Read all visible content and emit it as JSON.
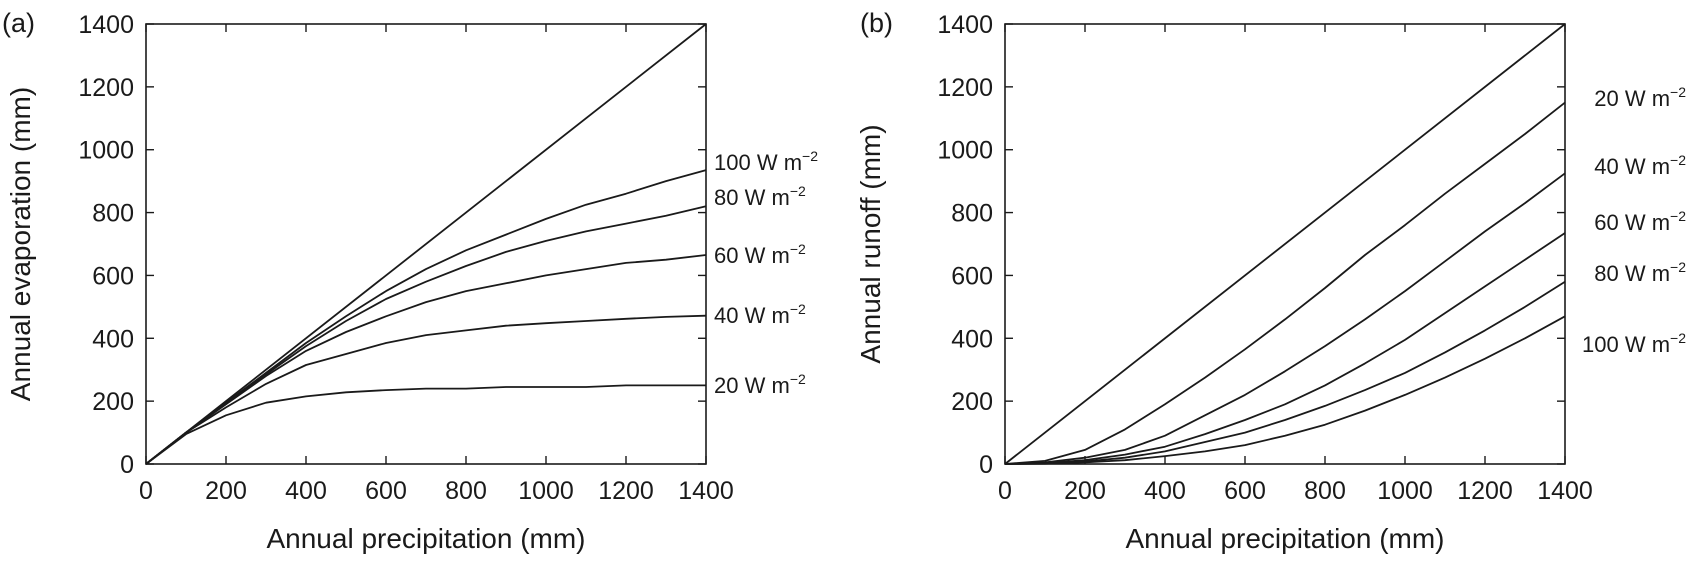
{
  "chart_data": [
    {
      "panel_label": "(a)",
      "type": "line",
      "xlabel": "Annual precipitation (mm)",
      "ylabel": "Annual evaporation (mm)",
      "xlim": [
        0,
        1400
      ],
      "ylim": [
        0,
        1400
      ],
      "xticks": [
        0,
        200,
        400,
        600,
        800,
        1000,
        1200,
        1400
      ],
      "yticks": [
        0,
        200,
        400,
        600,
        800,
        1000,
        1200,
        1400
      ],
      "grid": false,
      "unit_base": "W m",
      "unit_exp": "−2",
      "series": [
        {
          "name": "",
          "x": [
            0,
            1400
          ],
          "y": [
            0,
            1400
          ]
        },
        {
          "name": "100",
          "x": [
            0,
            100,
            200,
            300,
            400,
            500,
            600,
            700,
            800,
            900,
            1000,
            1100,
            1200,
            1300,
            1400
          ],
          "y": [
            0,
            100,
            195,
            290,
            385,
            470,
            550,
            620,
            680,
            730,
            780,
            825,
            860,
            900,
            935
          ]
        },
        {
          "name": "80",
          "x": [
            0,
            100,
            200,
            300,
            400,
            500,
            600,
            700,
            800,
            900,
            1000,
            1100,
            1200,
            1300,
            1400
          ],
          "y": [
            0,
            100,
            195,
            285,
            375,
            455,
            525,
            580,
            630,
            675,
            710,
            740,
            765,
            790,
            820
          ]
        },
        {
          "name": "60",
          "x": [
            0,
            100,
            200,
            300,
            400,
            500,
            600,
            700,
            800,
            900,
            1000,
            1100,
            1200,
            1300,
            1400
          ],
          "y": [
            0,
            100,
            190,
            280,
            360,
            420,
            470,
            515,
            550,
            575,
            600,
            620,
            640,
            650,
            665
          ]
        },
        {
          "name": "40",
          "x": [
            0,
            100,
            200,
            300,
            400,
            500,
            600,
            700,
            800,
            900,
            1000,
            1100,
            1200,
            1300,
            1400
          ],
          "y": [
            0,
            100,
            180,
            255,
            315,
            350,
            385,
            410,
            425,
            440,
            448,
            455,
            462,
            468,
            472
          ]
        },
        {
          "name": "20",
          "x": [
            0,
            100,
            200,
            300,
            400,
            500,
            600,
            700,
            800,
            900,
            1000,
            1100,
            1200,
            1300,
            1400
          ],
          "y": [
            0,
            95,
            155,
            195,
            215,
            228,
            235,
            240,
            240,
            245,
            245,
            245,
            250,
            250,
            250
          ]
        }
      ]
    },
    {
      "panel_label": "(b)",
      "type": "line",
      "xlabel": "Annual precipitation (mm)",
      "ylabel": "Annual runoff (mm)",
      "xlim": [
        0,
        1400
      ],
      "ylim": [
        0,
        1400
      ],
      "xticks": [
        0,
        200,
        400,
        600,
        800,
        1000,
        1200,
        1400
      ],
      "yticks": [
        0,
        200,
        400,
        600,
        800,
        1000,
        1200,
        1400
      ],
      "grid": false,
      "unit_base": "W m",
      "unit_exp": "−2",
      "series": [
        {
          "name": "",
          "x": [
            0,
            1400
          ],
          "y": [
            0,
            1400
          ]
        },
        {
          "name": "20",
          "x": [
            0,
            100,
            200,
            300,
            400,
            500,
            600,
            700,
            800,
            900,
            1000,
            1100,
            1200,
            1300,
            1400
          ],
          "y": [
            0,
            10,
            45,
            110,
            190,
            275,
            365,
            460,
            560,
            665,
            760,
            860,
            955,
            1050,
            1150
          ]
        },
        {
          "name": "40",
          "x": [
            0,
            100,
            200,
            300,
            400,
            500,
            600,
            700,
            800,
            900,
            1000,
            1100,
            1200,
            1300,
            1400
          ],
          "y": [
            0,
            5,
            20,
            45,
            90,
            155,
            220,
            295,
            375,
            460,
            550,
            645,
            740,
            830,
            925
          ]
        },
        {
          "name": "60",
          "x": [
            0,
            100,
            200,
            300,
            400,
            500,
            600,
            700,
            800,
            900,
            1000,
            1100,
            1200,
            1300,
            1400
          ],
          "y": [
            0,
            3,
            12,
            30,
            55,
            95,
            140,
            190,
            250,
            320,
            395,
            480,
            565,
            650,
            735
          ]
        },
        {
          "name": "80",
          "x": [
            0,
            100,
            200,
            300,
            400,
            500,
            600,
            700,
            800,
            900,
            1000,
            1100,
            1200,
            1300,
            1400
          ],
          "y": [
            0,
            2,
            8,
            20,
            40,
            70,
            100,
            140,
            185,
            235,
            290,
            355,
            425,
            500,
            580
          ]
        },
        {
          "name": "100",
          "x": [
            0,
            100,
            200,
            300,
            400,
            500,
            600,
            700,
            800,
            900,
            1000,
            1100,
            1200,
            1300,
            1400
          ],
          "y": [
            0,
            1,
            5,
            12,
            25,
            40,
            60,
            90,
            125,
            170,
            220,
            275,
            335,
            400,
            470
          ]
        }
      ]
    }
  ]
}
